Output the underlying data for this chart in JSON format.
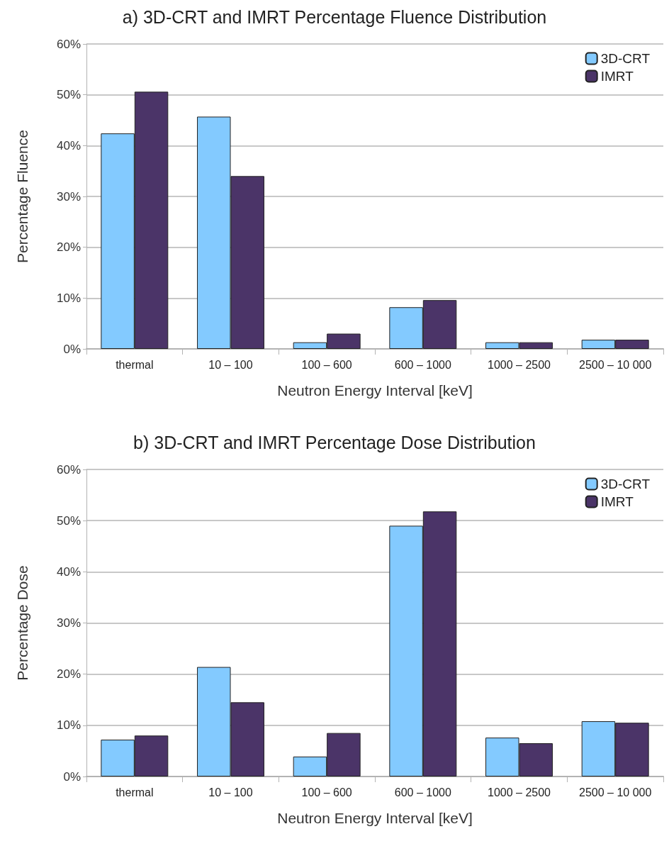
{
  "chart_data": [
    {
      "type": "bar",
      "title": "a) 3D-CRT and IMRT Percentage Fluence Distribution",
      "xlabel": "Neutron Energy Interval [keV]",
      "ylabel": "Percentage Fluence",
      "categories": [
        "thermal",
        "10 – 100",
        "100 – 600",
        "600 – 1000",
        "1000 – 2500",
        "2500 – 10 000"
      ],
      "series": [
        {
          "name": "3D-CRT",
          "color": "#83caff",
          "values": [
            42.4,
            45.7,
            1.3,
            8.2,
            1.3,
            1.8
          ]
        },
        {
          "name": "IMRT",
          "color": "#4b3468",
          "values": [
            50.6,
            34.0,
            3.0,
            9.6,
            1.3,
            1.8
          ]
        }
      ],
      "ylim": [
        0,
        60
      ],
      "yticks": [
        {
          "value": 0,
          "label": "0%"
        },
        {
          "value": 10,
          "label": "10%"
        },
        {
          "value": 20,
          "label": "20%"
        },
        {
          "value": 30,
          "label": "30%"
        },
        {
          "value": 40,
          "label": "40%"
        },
        {
          "value": 50,
          "label": "50%"
        },
        {
          "value": 60,
          "label": "60%"
        }
      ],
      "grid": "y",
      "legend": "top right"
    },
    {
      "type": "bar",
      "title": "b) 3D-CRT and IMRT Percentage Dose Distribution",
      "xlabel": "Neutron Energy Interval [keV]",
      "ylabel": "Percentage Dose",
      "categories": [
        "thermal",
        "10 – 100",
        "100 – 600",
        "600 – 1000",
        "1000 – 2500",
        "2500 – 10 000"
      ],
      "series": [
        {
          "name": "3D-CRT",
          "color": "#83caff",
          "values": [
            7.2,
            21.4,
            3.9,
            49.0,
            7.6,
            10.8
          ]
        },
        {
          "name": "IMRT",
          "color": "#4b3468",
          "values": [
            8.0,
            14.5,
            8.5,
            51.8,
            6.5,
            10.5
          ]
        }
      ],
      "ylim": [
        0,
        60
      ],
      "yticks": [
        {
          "value": 0,
          "label": "0%"
        },
        {
          "value": 10,
          "label": "10%"
        },
        {
          "value": 20,
          "label": "20%"
        },
        {
          "value": 30,
          "label": "30%"
        },
        {
          "value": 40,
          "label": "40%"
        },
        {
          "value": 50,
          "label": "50%"
        },
        {
          "value": 60,
          "label": "60%"
        }
      ],
      "grid": "y",
      "legend": "top right"
    }
  ]
}
